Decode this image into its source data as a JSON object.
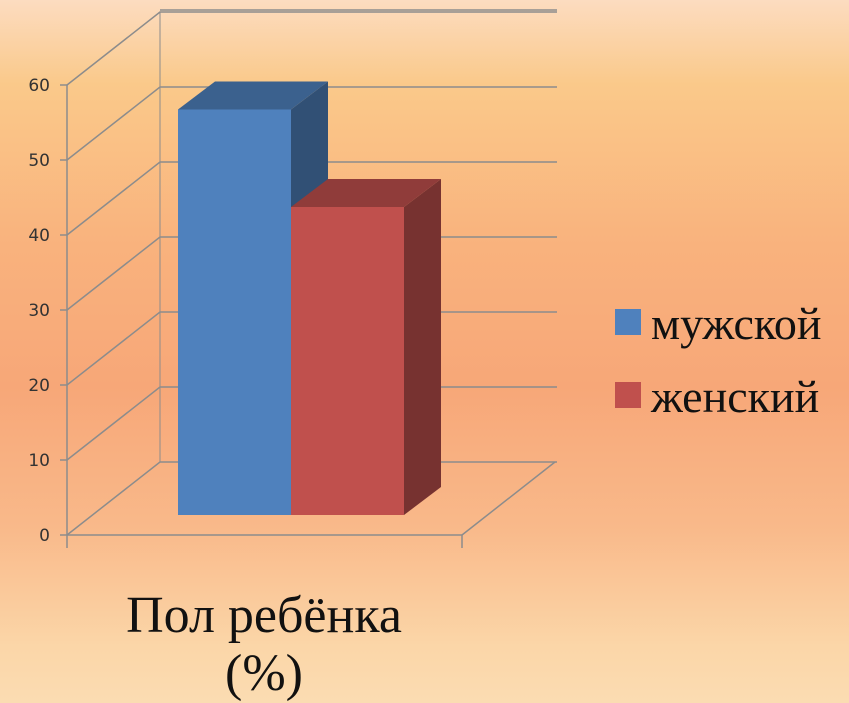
{
  "chart_data": {
    "type": "bar",
    "categories": [
      ""
    ],
    "series": [
      {
        "name": "мужской",
        "values": [
          57
        ],
        "color": "#4f81bd"
      },
      {
        "name": "женский",
        "values": [
          44
        ],
        "color": "#c0504d"
      }
    ],
    "title": "",
    "xlabel": "Пол ребёнка",
    "xlabel_unit": "(%)",
    "ylabel": "",
    "ylim": [
      0,
      60
    ],
    "yticks": [
      "0",
      "10",
      "20",
      "30",
      "40",
      "50",
      "60"
    ],
    "grid": true,
    "legend": "right",
    "style": "3d-column"
  }
}
